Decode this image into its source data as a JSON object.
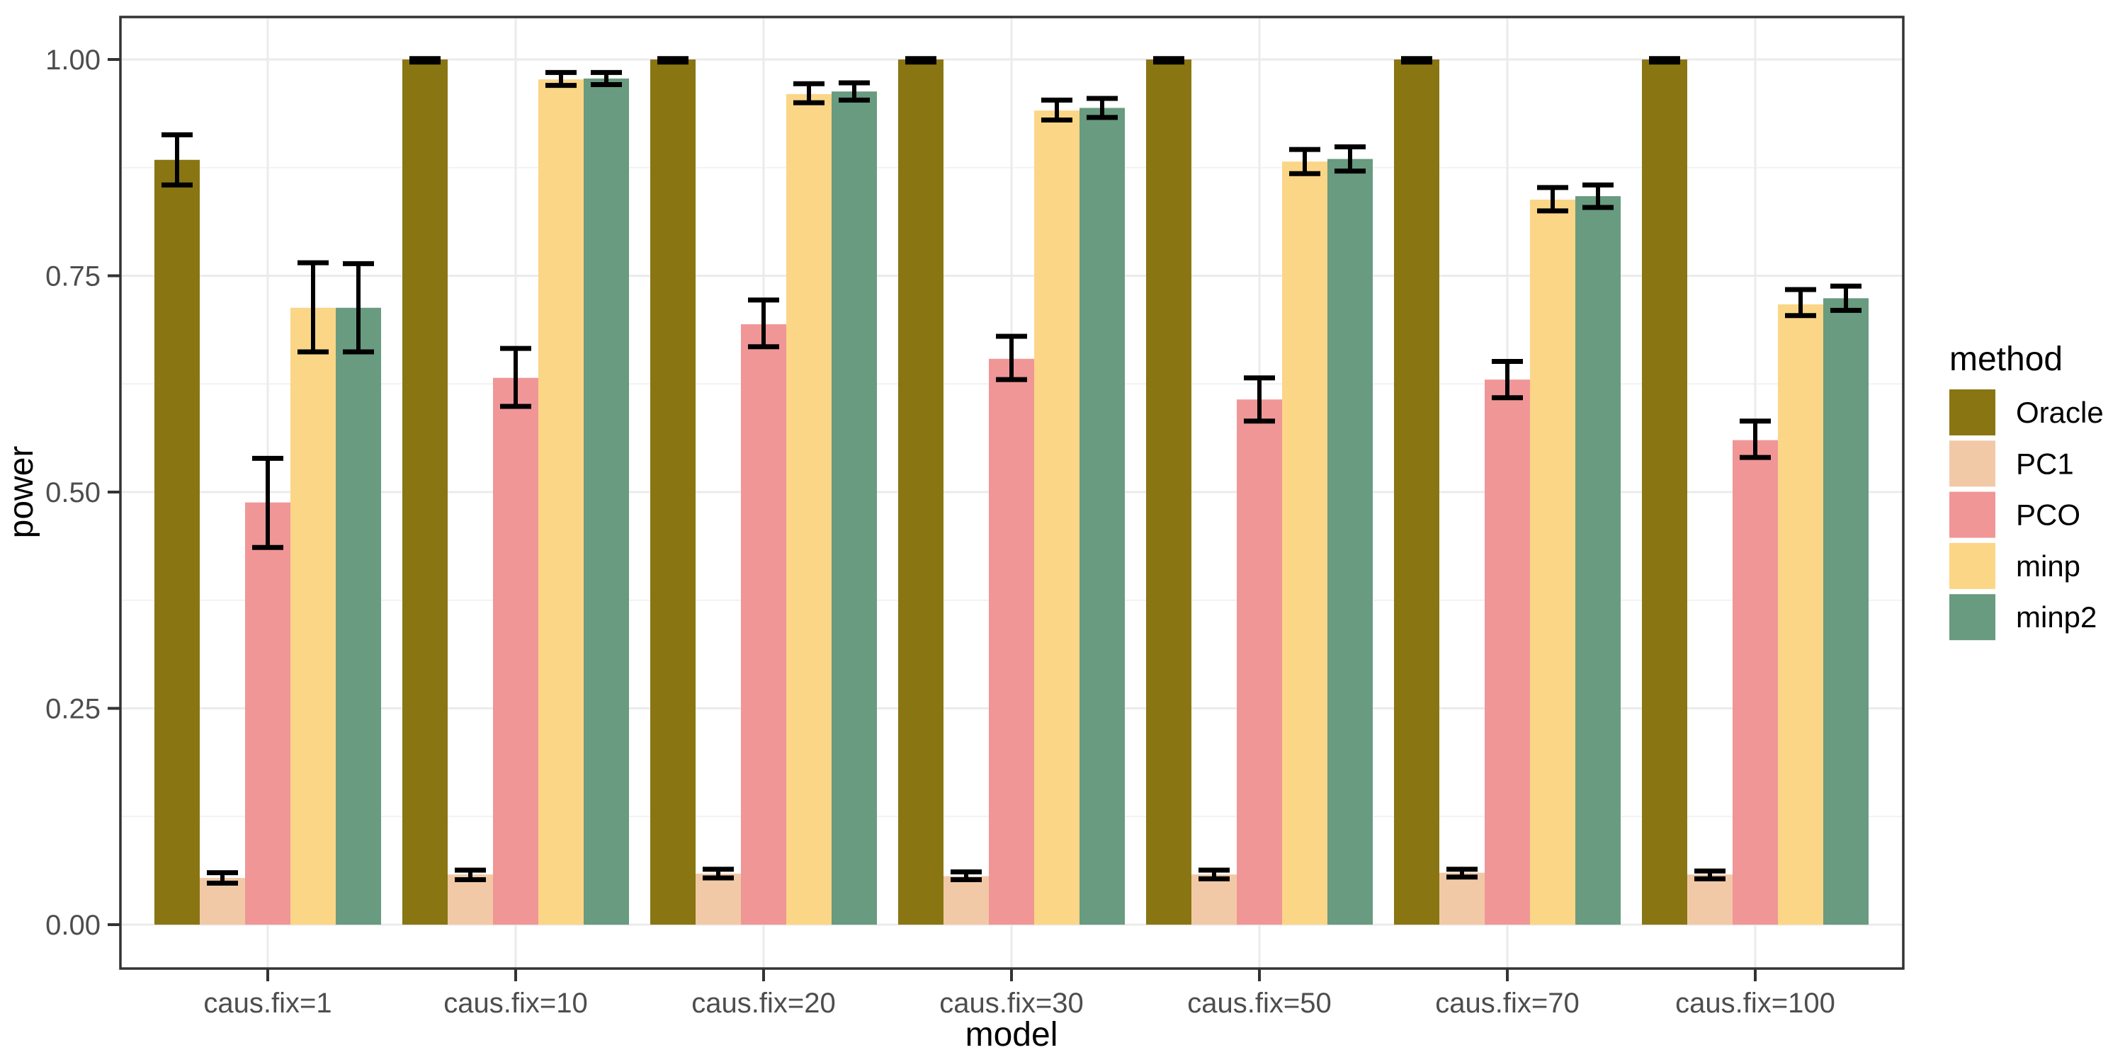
{
  "chart_data": {
    "type": "bar",
    "title": "",
    "xlabel": "model",
    "ylabel": "power",
    "legend_title": "method",
    "legend_position": "right",
    "grid": true,
    "categories": [
      "caus.fix=1",
      "caus.fix=10",
      "caus.fix=20",
      "caus.fix=30",
      "caus.fix=50",
      "caus.fix=70",
      "caus.fix=100"
    ],
    "series": [
      {
        "name": "Oracle",
        "color": "#8A7513",
        "values": [
          0.884,
          1.0,
          1.0,
          1.0,
          1.0,
          1.0,
          1.0
        ],
        "ymin": [
          0.855,
          0.997,
          0.997,
          0.997,
          0.997,
          0.997,
          0.997
        ],
        "ymax": [
          0.913,
          1.001,
          1.001,
          1.001,
          1.001,
          1.001,
          1.001
        ]
      },
      {
        "name": "PC1",
        "color": "#F2C9A7",
        "values": [
          0.054,
          0.058,
          0.059,
          0.056,
          0.058,
          0.06,
          0.058
        ],
        "ymin": [
          0.048,
          0.052,
          0.054,
          0.052,
          0.053,
          0.055,
          0.053
        ],
        "ymax": [
          0.06,
          0.063,
          0.064,
          0.061,
          0.063,
          0.064,
          0.062
        ]
      },
      {
        "name": "PCO",
        "color": "#F09697",
        "values": [
          0.488,
          0.632,
          0.694,
          0.654,
          0.607,
          0.63,
          0.56
        ],
        "ymin": [
          0.436,
          0.599,
          0.668,
          0.63,
          0.582,
          0.609,
          0.54
        ],
        "ymax": [
          0.539,
          0.666,
          0.722,
          0.68,
          0.632,
          0.651,
          0.582
        ]
      },
      {
        "name": "minp",
        "color": "#FBD687",
        "values": [
          0.713,
          0.977,
          0.96,
          0.941,
          0.882,
          0.838,
          0.717
        ],
        "ymin": [
          0.662,
          0.97,
          0.95,
          0.93,
          0.868,
          0.825,
          0.704
        ],
        "ymax": [
          0.765,
          0.985,
          0.972,
          0.953,
          0.896,
          0.852,
          0.734
        ]
      },
      {
        "name": "minp2",
        "color": "#689B7F",
        "values": [
          0.713,
          0.978,
          0.963,
          0.944,
          0.885,
          0.842,
          0.724
        ],
        "ymin": [
          0.662,
          0.971,
          0.953,
          0.933,
          0.871,
          0.829,
          0.71
        ],
        "ymax": [
          0.764,
          0.985,
          0.973,
          0.955,
          0.899,
          0.855,
          0.738
        ]
      }
    ],
    "error_bars": true,
    "y_ticks": [
      0.0,
      0.25,
      0.5,
      0.75,
      1.0
    ],
    "y_tick_labels": [
      "0.00",
      "0.25",
      "0.50",
      "0.75",
      "1.00"
    ],
    "y_minor_ticks": [
      0.125,
      0.375,
      0.625,
      0.875
    ],
    "ylim": [
      -0.05,
      1.05
    ],
    "colors": {
      "panel_background": "#FFFFFF",
      "panel_border": "#333333",
      "grid_major": "#EBEBEB",
      "grid_minor": "#F2F2F2",
      "tick_mark": "#333333",
      "tick_label": "#4D4D4D",
      "error_bar": "#000000"
    }
  }
}
